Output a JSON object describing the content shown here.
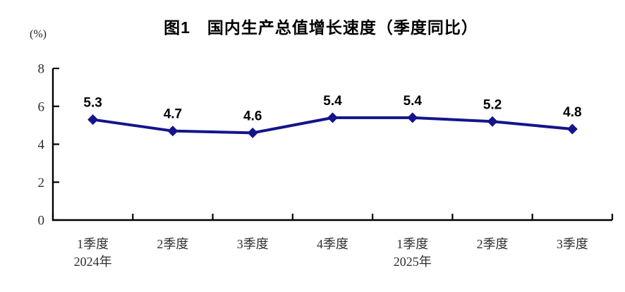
{
  "chart_data": {
    "type": "line",
    "title": "图1　国内生产总值增长速度（季度同比）",
    "unit_label": "(%)",
    "categories": [
      "1季度",
      "2季度",
      "3季度",
      "4季度",
      "1季度",
      "2季度",
      "3季度"
    ],
    "year_labels": [
      {
        "index": 0,
        "label": "2024年"
      },
      {
        "index": 4,
        "label": "2025年"
      }
    ],
    "series": [
      {
        "name": "国内生产总值增长速度",
        "values": [
          5.3,
          4.7,
          4.6,
          5.4,
          5.4,
          5.2,
          4.8
        ]
      }
    ],
    "data_labels": [
      "5.3",
      "4.7",
      "4.6",
      "5.4",
      "5.4",
      "5.2",
      "4.8"
    ],
    "ytick_labels": [
      "0",
      "2",
      "4",
      "6",
      "8"
    ],
    "ylim": [
      0,
      8
    ],
    "ytick_step": 2,
    "grid": false,
    "legend_position": "none",
    "line_color": "#14148C",
    "axis_color": "#000000",
    "label_color": "#000000"
  }
}
